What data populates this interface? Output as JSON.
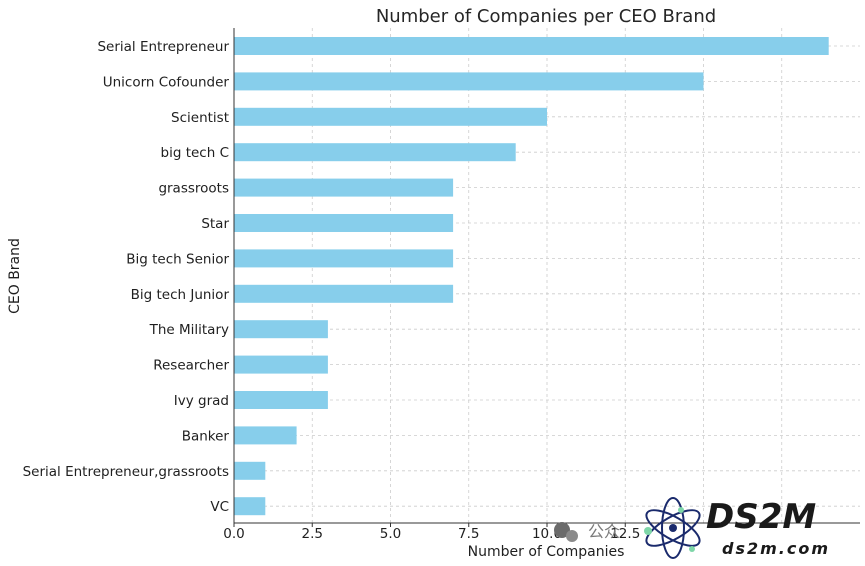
{
  "chart_data": {
    "type": "bar",
    "orientation": "horizontal",
    "title": "Number of Companies per CEO Brand",
    "xlabel": "Number of Companies",
    "ylabel": "CEO Brand",
    "categories": [
      "Serial Entrepreneur",
      "Unicorn Cofounder",
      "Scientist",
      "big tech C",
      "grassroots",
      "Star",
      "Big tech Senior",
      "Big tech Junior",
      "The Military",
      "Researcher",
      "Ivy grad",
      "Banker",
      "Serial Entrepreneur,grassroots",
      "VC"
    ],
    "values": [
      19,
      15,
      10,
      9,
      7,
      7,
      7,
      7,
      3,
      3,
      3,
      2,
      1,
      1
    ],
    "xlim": [
      0,
      20
    ],
    "xticks": [
      0,
      2.5,
      5,
      7.5,
      10,
      12.5
    ],
    "xtick_labels": [
      "0.0",
      "2.5",
      "5.0",
      "7.5",
      "10.0",
      "12.5"
    ],
    "grid": true,
    "bar_color": "#87ceeb"
  },
  "watermark": {
    "wechat_text": "公众",
    "brand": "DS2M",
    "domain": "ds2m.com",
    "brand_color": "#1a1a1a",
    "accent_color": "#7ed6a8"
  }
}
